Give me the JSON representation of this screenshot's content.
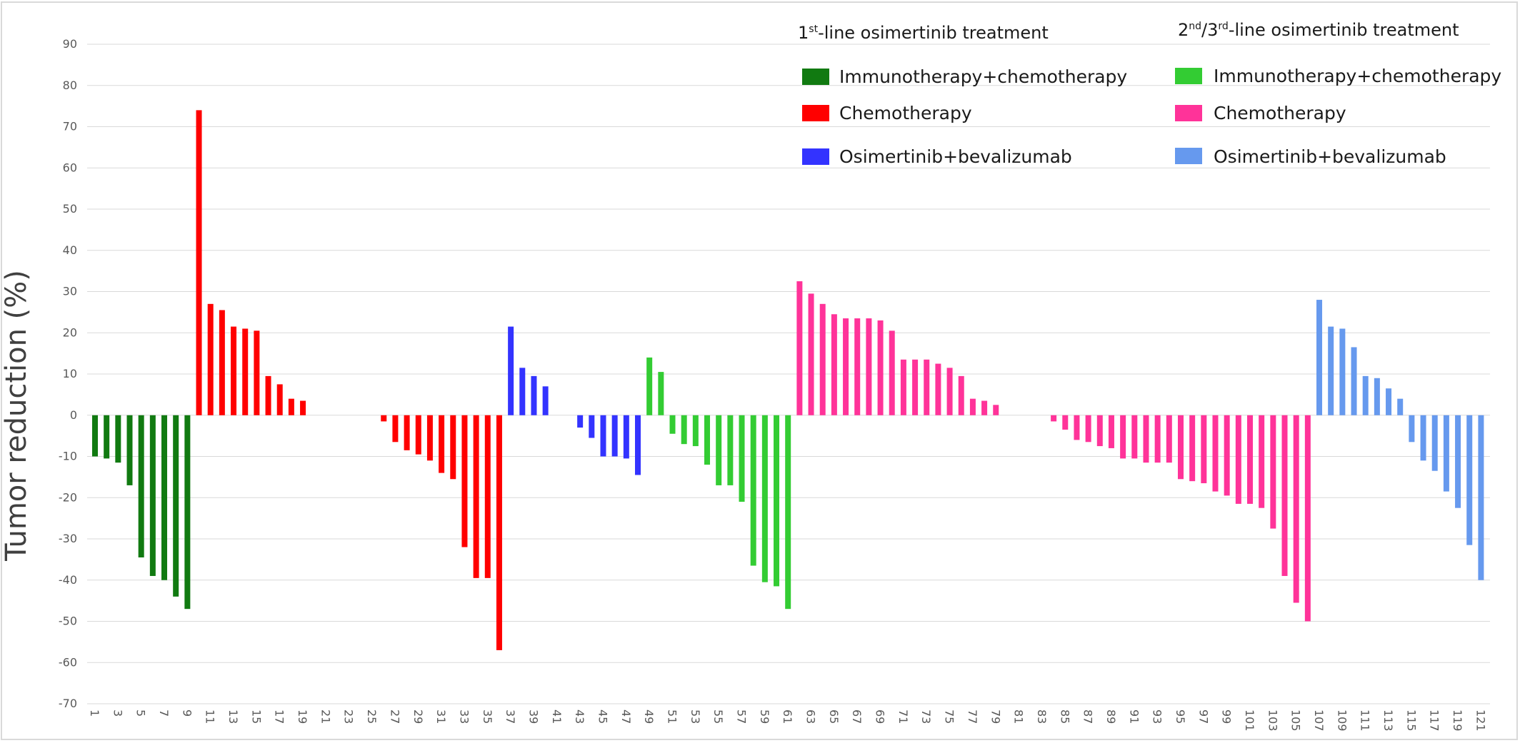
{
  "chart_data": {
    "type": "bar",
    "title": "",
    "xlabel": "",
    "ylabel": "Tumor reduction (%)",
    "ylim": [
      -70,
      90
    ],
    "yticks": [
      90,
      80,
      70,
      60,
      50,
      40,
      30,
      20,
      10,
      0,
      -10,
      -20,
      -30,
      -40,
      -50,
      -60,
      -70
    ],
    "x_tick_labels": [
      "1",
      "3",
      "5",
      "7",
      "9",
      "11",
      "13",
      "15",
      "17",
      "19",
      "21",
      "23",
      "25",
      "27",
      "29",
      "31",
      "33",
      "35",
      "37",
      "39",
      "41",
      "43",
      "45",
      "47",
      "49",
      "51",
      "53",
      "55",
      "57",
      "59",
      "61",
      "63",
      "65",
      "67",
      "69",
      "71",
      "73",
      "75",
      "77",
      "79",
      "81",
      "83",
      "85",
      "87",
      "89",
      "91",
      "93",
      "95",
      "97",
      "99",
      "101",
      "103",
      "105",
      "107",
      "109",
      "111",
      "113",
      "115",
      "117",
      "119",
      "121"
    ],
    "grid": true,
    "legend_position": "top-right",
    "legend": {
      "header_first": {
        "pre": "1",
        "sup": "st",
        "post": "-line osimertinib treatment"
      },
      "header_second": {
        "pre": "2",
        "sup1": "nd",
        "mid": "/3",
        "sup2": "rd",
        "post": "-line osimertinib treatment"
      }
    },
    "series": [
      {
        "name": "Immunotherapy+chemotherapy",
        "group": "1st-line",
        "color": "#117a11",
        "x": [
          1,
          2,
          3,
          4,
          5,
          6,
          7,
          8,
          9
        ],
        "values": [
          -10,
          -10.5,
          -11.5,
          -17,
          -34.5,
          -39,
          -40,
          -44,
          -47
        ]
      },
      {
        "name": "Chemotherapy",
        "group": "1st-line",
        "color": "#ff0000",
        "x": [
          10,
          11,
          12,
          13,
          14,
          15,
          16,
          17,
          18,
          19,
          26,
          27,
          28,
          29,
          30,
          31,
          32,
          33,
          34,
          35,
          36
        ],
        "values": [
          74,
          27,
          25.5,
          21.5,
          21,
          20.5,
          9.5,
          7.5,
          4,
          3.5,
          -1.5,
          -6.5,
          -8.5,
          -9.5,
          -11,
          -14,
          -15.5,
          -32,
          -39.5,
          -39.5,
          -57
        ]
      },
      {
        "name": "Osimertinib+bevalizumab",
        "group": "1st-line",
        "color": "#3333ff",
        "x": [
          37,
          38,
          39,
          40,
          43,
          44,
          45,
          46,
          47,
          48
        ],
        "values": [
          21.5,
          11.5,
          9.5,
          7,
          -3,
          -5.5,
          -10,
          -10,
          -10.5,
          -14.5
        ]
      },
      {
        "name": "Immunotherapy+chemotherapy",
        "group": "2nd/3rd-line",
        "color": "#33cc33",
        "x": [
          49,
          50,
          51,
          52,
          53,
          54,
          55,
          56,
          57,
          58,
          59,
          60,
          61
        ],
        "values": [
          14,
          10.5,
          -4.5,
          -7,
          -7.5,
          -12,
          -17,
          -17,
          -21,
          -36.5,
          -40.5,
          -41.5,
          -47
        ]
      },
      {
        "name": "Chemotherapy",
        "group": "2nd/3rd-line",
        "color": "#ff3399",
        "x": [
          62,
          63,
          64,
          65,
          66,
          67,
          68,
          69,
          70,
          71,
          72,
          73,
          74,
          75,
          76,
          77,
          78,
          79,
          84,
          85,
          86,
          87,
          88,
          89,
          90,
          91,
          92,
          93,
          94,
          95,
          96,
          97,
          98,
          99,
          100,
          101,
          102,
          103,
          104,
          105,
          106
        ],
        "values": [
          32.5,
          29.5,
          27,
          24.5,
          23.5,
          23.5,
          23.5,
          23,
          20.5,
          13.5,
          13.5,
          13.5,
          12.5,
          11.5,
          9.5,
          4,
          3.5,
          2.5,
          -1.5,
          -3.5,
          -6,
          -6.5,
          -7.5,
          -8,
          -10.5,
          -10.5,
          -11.5,
          -11.5,
          -11.5,
          -15.5,
          -16,
          -16.5,
          -18.5,
          -19.5,
          -21.5,
          -21.5,
          -22.5,
          -27.5,
          -39,
          -45.5,
          -50
        ]
      },
      {
        "name": "Osimertinib+bevalizumab",
        "group": "2nd/3rd-line",
        "color": "#6699ee",
        "x": [
          107,
          108,
          109,
          110,
          111,
          112,
          113,
          114,
          115,
          116,
          117,
          118,
          119,
          120,
          121
        ],
        "values": [
          28,
          21.5,
          21,
          16.5,
          9.5,
          9,
          6.5,
          4,
          -6.5,
          -11,
          -13.5,
          -18.5,
          -22.5,
          -31.5,
          -40
        ]
      }
    ]
  }
}
